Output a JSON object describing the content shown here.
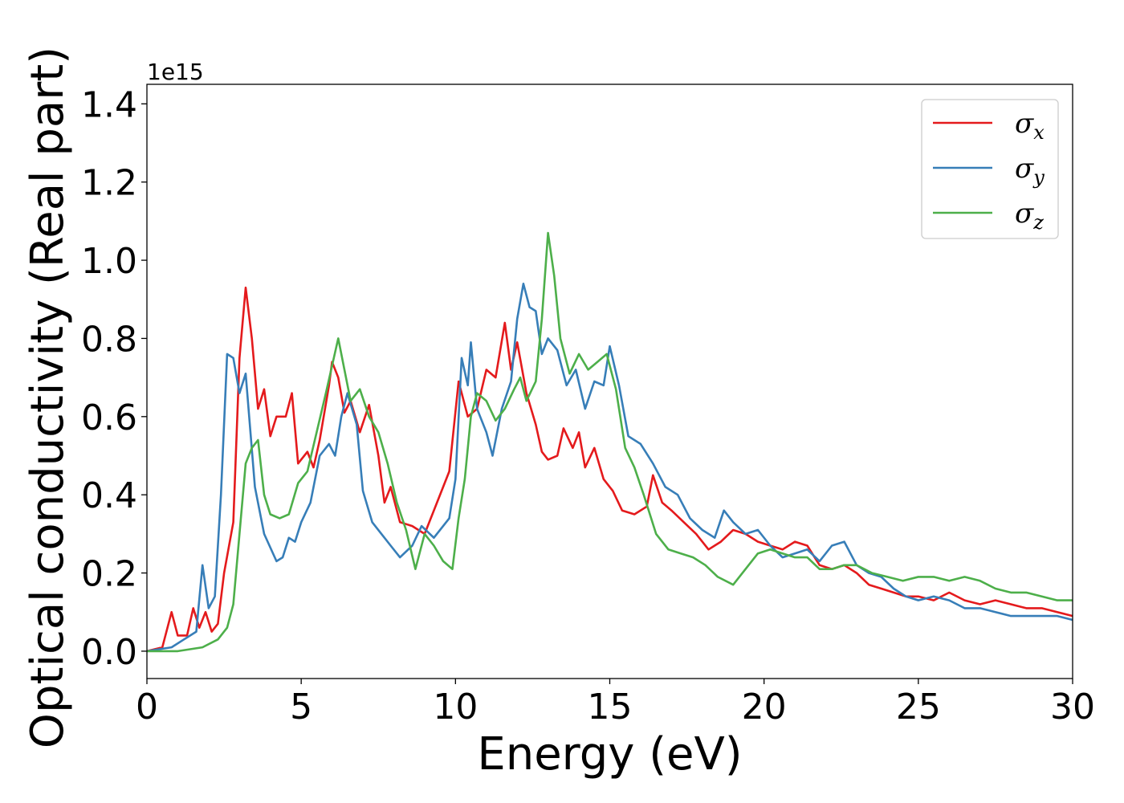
{
  "chart_data": {
    "type": "line",
    "title": "",
    "xlabel": "Energy (eV)",
    "ylabel": "Optical conductivity (Real part)",
    "y_offset_label": "1e15",
    "xlim": [
      0,
      30
    ],
    "ylim": [
      -0.07,
      1.45
    ],
    "x_ticks": [
      "0",
      "5",
      "10",
      "15",
      "20",
      "25",
      "30"
    ],
    "y_ticks": [
      "0.0",
      "0.2",
      "0.4",
      "0.6",
      "0.8",
      "1.0",
      "1.2",
      "1.4"
    ],
    "grid": false,
    "legend_position": "top-right",
    "series": [
      {
        "name": "σx",
        "symbol": "σ",
        "subscript": "x",
        "color": "#e41a1c",
        "points": [
          [
            0,
            0
          ],
          [
            0.5,
            0.01
          ],
          [
            0.8,
            0.1
          ],
          [
            1.0,
            0.04
          ],
          [
            1.3,
            0.04
          ],
          [
            1.5,
            0.11
          ],
          [
            1.7,
            0.06
          ],
          [
            1.9,
            0.1
          ],
          [
            2.1,
            0.05
          ],
          [
            2.3,
            0.07
          ],
          [
            2.5,
            0.2
          ],
          [
            2.8,
            0.33
          ],
          [
            3.0,
            0.75
          ],
          [
            3.2,
            0.93
          ],
          [
            3.4,
            0.8
          ],
          [
            3.6,
            0.62
          ],
          [
            3.8,
            0.67
          ],
          [
            4.0,
            0.55
          ],
          [
            4.2,
            0.6
          ],
          [
            4.5,
            0.6
          ],
          [
            4.7,
            0.66
          ],
          [
            4.9,
            0.48
          ],
          [
            5.2,
            0.51
          ],
          [
            5.4,
            0.47
          ],
          [
            5.6,
            0.54
          ],
          [
            5.9,
            0.68
          ],
          [
            6.0,
            0.74
          ],
          [
            6.2,
            0.7
          ],
          [
            6.4,
            0.61
          ],
          [
            6.6,
            0.64
          ],
          [
            6.9,
            0.56
          ],
          [
            7.2,
            0.63
          ],
          [
            7.5,
            0.5
          ],
          [
            7.7,
            0.38
          ],
          [
            7.9,
            0.42
          ],
          [
            8.2,
            0.33
          ],
          [
            8.6,
            0.32
          ],
          [
            9.0,
            0.3
          ],
          [
            9.4,
            0.38
          ],
          [
            9.8,
            0.46
          ],
          [
            10.1,
            0.69
          ],
          [
            10.4,
            0.6
          ],
          [
            10.7,
            0.62
          ],
          [
            11.0,
            0.72
          ],
          [
            11.3,
            0.7
          ],
          [
            11.6,
            0.84
          ],
          [
            11.8,
            0.72
          ],
          [
            12.0,
            0.79
          ],
          [
            12.3,
            0.66
          ],
          [
            12.6,
            0.58
          ],
          [
            12.8,
            0.51
          ],
          [
            13.0,
            0.49
          ],
          [
            13.3,
            0.5
          ],
          [
            13.5,
            0.57
          ],
          [
            13.8,
            0.52
          ],
          [
            14.0,
            0.56
          ],
          [
            14.2,
            0.47
          ],
          [
            14.5,
            0.52
          ],
          [
            14.8,
            0.44
          ],
          [
            15.1,
            0.41
          ],
          [
            15.4,
            0.36
          ],
          [
            15.8,
            0.35
          ],
          [
            16.2,
            0.37
          ],
          [
            16.4,
            0.45
          ],
          [
            16.7,
            0.38
          ],
          [
            17.0,
            0.36
          ],
          [
            17.4,
            0.33
          ],
          [
            17.8,
            0.3
          ],
          [
            18.2,
            0.26
          ],
          [
            18.6,
            0.28
          ],
          [
            19.0,
            0.31
          ],
          [
            19.4,
            0.3
          ],
          [
            19.8,
            0.28
          ],
          [
            20.2,
            0.27
          ],
          [
            20.6,
            0.26
          ],
          [
            21.0,
            0.28
          ],
          [
            21.4,
            0.27
          ],
          [
            21.8,
            0.22
          ],
          [
            22.2,
            0.21
          ],
          [
            22.6,
            0.22
          ],
          [
            23.0,
            0.2
          ],
          [
            23.4,
            0.17
          ],
          [
            23.8,
            0.16
          ],
          [
            24.2,
            0.15
          ],
          [
            24.6,
            0.14
          ],
          [
            25.0,
            0.14
          ],
          [
            25.5,
            0.13
          ],
          [
            26.0,
            0.15
          ],
          [
            26.5,
            0.13
          ],
          [
            27.0,
            0.12
          ],
          [
            27.5,
            0.13
          ],
          [
            28.0,
            0.12
          ],
          [
            28.5,
            0.11
          ],
          [
            29.0,
            0.11
          ],
          [
            29.5,
            0.1
          ],
          [
            30.0,
            0.09
          ]
        ]
      },
      {
        "name": "σy",
        "symbol": "σ",
        "subscript": "y",
        "color": "#377eb8",
        "points": [
          [
            0,
            0
          ],
          [
            0.8,
            0.01
          ],
          [
            1.2,
            0.03
          ],
          [
            1.6,
            0.05
          ],
          [
            1.8,
            0.22
          ],
          [
            2.0,
            0.11
          ],
          [
            2.2,
            0.14
          ],
          [
            2.4,
            0.4
          ],
          [
            2.6,
            0.76
          ],
          [
            2.8,
            0.75
          ],
          [
            3.0,
            0.66
          ],
          [
            3.2,
            0.71
          ],
          [
            3.5,
            0.42
          ],
          [
            3.8,
            0.3
          ],
          [
            4.2,
            0.23
          ],
          [
            4.4,
            0.24
          ],
          [
            4.6,
            0.29
          ],
          [
            4.8,
            0.28
          ],
          [
            5.0,
            0.33
          ],
          [
            5.3,
            0.38
          ],
          [
            5.6,
            0.5
          ],
          [
            5.9,
            0.53
          ],
          [
            6.1,
            0.5
          ],
          [
            6.3,
            0.6
          ],
          [
            6.5,
            0.66
          ],
          [
            6.8,
            0.58
          ],
          [
            7.0,
            0.41
          ],
          [
            7.3,
            0.33
          ],
          [
            7.6,
            0.3
          ],
          [
            7.9,
            0.27
          ],
          [
            8.2,
            0.24
          ],
          [
            8.6,
            0.27
          ],
          [
            8.9,
            0.32
          ],
          [
            9.3,
            0.29
          ],
          [
            9.8,
            0.34
          ],
          [
            10.0,
            0.44
          ],
          [
            10.2,
            0.75
          ],
          [
            10.4,
            0.68
          ],
          [
            10.5,
            0.79
          ],
          [
            10.7,
            0.62
          ],
          [
            11.0,
            0.56
          ],
          [
            11.2,
            0.5
          ],
          [
            11.5,
            0.62
          ],
          [
            11.8,
            0.69
          ],
          [
            12.0,
            0.85
          ],
          [
            12.2,
            0.94
          ],
          [
            12.4,
            0.88
          ],
          [
            12.6,
            0.87
          ],
          [
            12.8,
            0.76
          ],
          [
            13.0,
            0.8
          ],
          [
            13.3,
            0.77
          ],
          [
            13.6,
            0.68
          ],
          [
            13.9,
            0.72
          ],
          [
            14.2,
            0.62
          ],
          [
            14.5,
            0.69
          ],
          [
            14.8,
            0.68
          ],
          [
            15.0,
            0.78
          ],
          [
            15.3,
            0.68
          ],
          [
            15.6,
            0.55
          ],
          [
            16.0,
            0.53
          ],
          [
            16.4,
            0.48
          ],
          [
            16.8,
            0.42
          ],
          [
            17.2,
            0.4
          ],
          [
            17.6,
            0.34
          ],
          [
            18.0,
            0.31
          ],
          [
            18.4,
            0.29
          ],
          [
            18.7,
            0.36
          ],
          [
            19.0,
            0.33
          ],
          [
            19.4,
            0.3
          ],
          [
            19.8,
            0.31
          ],
          [
            20.2,
            0.27
          ],
          [
            20.6,
            0.24
          ],
          [
            21.0,
            0.25
          ],
          [
            21.4,
            0.26
          ],
          [
            21.8,
            0.23
          ],
          [
            22.2,
            0.27
          ],
          [
            22.6,
            0.28
          ],
          [
            23.0,
            0.22
          ],
          [
            23.4,
            0.2
          ],
          [
            23.8,
            0.19
          ],
          [
            24.2,
            0.16
          ],
          [
            24.6,
            0.14
          ],
          [
            25.0,
            0.13
          ],
          [
            25.5,
            0.14
          ],
          [
            26.0,
            0.13
          ],
          [
            26.5,
            0.11
          ],
          [
            27.0,
            0.11
          ],
          [
            27.5,
            0.1
          ],
          [
            28.0,
            0.09
          ],
          [
            28.5,
            0.09
          ],
          [
            29.0,
            0.09
          ],
          [
            29.5,
            0.09
          ],
          [
            30.0,
            0.08
          ]
        ]
      },
      {
        "name": "σz",
        "symbol": "σ",
        "subscript": "z",
        "color": "#4daf4a",
        "points": [
          [
            0,
            0
          ],
          [
            1.0,
            0.0
          ],
          [
            1.8,
            0.01
          ],
          [
            2.3,
            0.03
          ],
          [
            2.6,
            0.06
          ],
          [
            2.8,
            0.12
          ],
          [
            3.0,
            0.3
          ],
          [
            3.2,
            0.48
          ],
          [
            3.4,
            0.52
          ],
          [
            3.6,
            0.54
          ],
          [
            3.8,
            0.4
          ],
          [
            4.0,
            0.35
          ],
          [
            4.3,
            0.34
          ],
          [
            4.6,
            0.35
          ],
          [
            4.9,
            0.43
          ],
          [
            5.2,
            0.46
          ],
          [
            5.5,
            0.56
          ],
          [
            5.8,
            0.66
          ],
          [
            6.0,
            0.73
          ],
          [
            6.2,
            0.8
          ],
          [
            6.4,
            0.72
          ],
          [
            6.6,
            0.64
          ],
          [
            6.9,
            0.67
          ],
          [
            7.2,
            0.6
          ],
          [
            7.5,
            0.56
          ],
          [
            7.8,
            0.48
          ],
          [
            8.1,
            0.38
          ],
          [
            8.4,
            0.31
          ],
          [
            8.7,
            0.21
          ],
          [
            9.0,
            0.3
          ],
          [
            9.3,
            0.27
          ],
          [
            9.6,
            0.23
          ],
          [
            9.9,
            0.21
          ],
          [
            10.1,
            0.34
          ],
          [
            10.3,
            0.44
          ],
          [
            10.5,
            0.6
          ],
          [
            10.7,
            0.66
          ],
          [
            11.0,
            0.64
          ],
          [
            11.3,
            0.59
          ],
          [
            11.6,
            0.62
          ],
          [
            11.9,
            0.67
          ],
          [
            12.1,
            0.7
          ],
          [
            12.3,
            0.64
          ],
          [
            12.6,
            0.69
          ],
          [
            12.8,
            0.85
          ],
          [
            13.0,
            1.07
          ],
          [
            13.2,
            0.96
          ],
          [
            13.4,
            0.8
          ],
          [
            13.7,
            0.71
          ],
          [
            14.0,
            0.76
          ],
          [
            14.3,
            0.72
          ],
          [
            14.6,
            0.74
          ],
          [
            14.9,
            0.76
          ],
          [
            15.2,
            0.67
          ],
          [
            15.5,
            0.52
          ],
          [
            15.8,
            0.47
          ],
          [
            16.1,
            0.4
          ],
          [
            16.5,
            0.3
          ],
          [
            16.9,
            0.26
          ],
          [
            17.3,
            0.25
          ],
          [
            17.7,
            0.24
          ],
          [
            18.1,
            0.22
          ],
          [
            18.5,
            0.19
          ],
          [
            19.0,
            0.17
          ],
          [
            19.4,
            0.21
          ],
          [
            19.8,
            0.25
          ],
          [
            20.2,
            0.26
          ],
          [
            20.6,
            0.25
          ],
          [
            21.0,
            0.24
          ],
          [
            21.4,
            0.24
          ],
          [
            21.8,
            0.21
          ],
          [
            22.2,
            0.21
          ],
          [
            22.6,
            0.22
          ],
          [
            23.0,
            0.22
          ],
          [
            23.5,
            0.2
          ],
          [
            24.0,
            0.19
          ],
          [
            24.5,
            0.18
          ],
          [
            25.0,
            0.19
          ],
          [
            25.5,
            0.19
          ],
          [
            26.0,
            0.18
          ],
          [
            26.5,
            0.19
          ],
          [
            27.0,
            0.18
          ],
          [
            27.5,
            0.16
          ],
          [
            28.0,
            0.15
          ],
          [
            28.5,
            0.15
          ],
          [
            29.0,
            0.14
          ],
          [
            29.5,
            0.13
          ],
          [
            30.0,
            0.13
          ]
        ]
      }
    ]
  }
}
